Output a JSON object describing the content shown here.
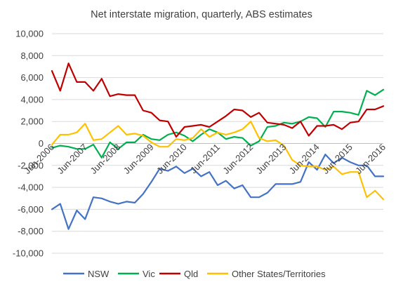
{
  "chart_data": {
    "type": "line",
    "title": "Net interstate migration, quarterly,  ABS estimates",
    "xlabel": "",
    "ylabel": "",
    "ylim": [
      -10000,
      10000
    ],
    "yticks": [
      -10000,
      -8000,
      -6000,
      -4000,
      -2000,
      0,
      2000,
      4000,
      6000,
      8000,
      10000
    ],
    "ytick_labels": [
      "-10,000",
      "-8,000",
      "-6,000",
      "-4,000",
      "-2,000",
      "0",
      "2,000",
      "4,000",
      "6,000",
      "8,000",
      "10,000"
    ],
    "xtick_labels": [
      "Jun-2006",
      "Jun-2007",
      "Jun-2008",
      "Jun-2009",
      "Jun-2010",
      "Jun-2011",
      "Jun-2012",
      "Jun-2013",
      "Jun-2014",
      "Jun-2015",
      "Jun-2016"
    ],
    "grid": "horizontal",
    "legend_position": "bottom",
    "x": [
      "Jun-2006",
      "Sep-2006",
      "Dec-2006",
      "Mar-2007",
      "Jun-2007",
      "Sep-2007",
      "Dec-2007",
      "Mar-2008",
      "Jun-2008",
      "Sep-2008",
      "Dec-2008",
      "Mar-2009",
      "Jun-2009",
      "Sep-2009",
      "Dec-2009",
      "Mar-2010",
      "Jun-2010",
      "Sep-2010",
      "Dec-2010",
      "Mar-2011",
      "Jun-2011",
      "Sep-2011",
      "Dec-2011",
      "Mar-2012",
      "Jun-2012",
      "Sep-2012",
      "Dec-2012",
      "Mar-2013",
      "Jun-2013",
      "Sep-2013",
      "Dec-2013",
      "Mar-2014",
      "Jun-2014",
      "Sep-2014",
      "Dec-2014",
      "Mar-2015",
      "Jun-2015",
      "Sep-2015",
      "Dec-2015",
      "Mar-2016",
      "Jun-2016"
    ],
    "series": [
      {
        "name": "NSW",
        "color": "#4472C4",
        "values": [
          -6000,
          -5500,
          -7800,
          -6100,
          -6900,
          -4900,
          -5000,
          -5300,
          -5500,
          -5300,
          -5400,
          -4600,
          -3500,
          -2300,
          -2500,
          -2100,
          -2700,
          -2300,
          -3000,
          -2600,
          -3800,
          -3400,
          -4100,
          -3800,
          -4900,
          -4900,
          -4500,
          -3700,
          -3700,
          -3700,
          -3500,
          -1700,
          -2400,
          -1000,
          -1800,
          -1300,
          -1700,
          -2000,
          -2000,
          -3000,
          -3000
        ]
      },
      {
        "name": "Vic",
        "color": "#00B050",
        "values": [
          -400,
          -200,
          -300,
          -500,
          -500,
          -100,
          -1300,
          100,
          -500,
          100,
          100,
          800,
          400,
          300,
          800,
          1000,
          700,
          200,
          800,
          1300,
          1000,
          400,
          600,
          500,
          -200,
          200,
          1500,
          1600,
          1900,
          1800,
          2000,
          2400,
          2300,
          1500,
          2900,
          2900,
          2800,
          2600,
          4800,
          4400,
          4900
        ]
      },
      {
        "name": "Qld",
        "color": "#C00000",
        "values": [
          6600,
          4800,
          7300,
          5600,
          5600,
          4800,
          5900,
          4300,
          4500,
          4400,
          4400,
          3000,
          2800,
          2100,
          2000,
          600,
          1500,
          1600,
          1700,
          1500,
          2000,
          2500,
          3100,
          3000,
          2400,
          2800,
          1900,
          1800,
          1700,
          1400,
          2000,
          700,
          1600,
          1600,
          1700,
          1300,
          1900,
          2000,
          3100,
          3100,
          3400
        ]
      },
      {
        "name": "Other States/Territories",
        "color": "#FFC000",
        "values": [
          -100,
          800,
          800,
          1000,
          1800,
          300,
          400,
          1000,
          1600,
          800,
          900,
          700,
          100,
          -300,
          -300,
          400,
          300,
          500,
          1300,
          600,
          1000,
          800,
          1000,
          1300,
          2000,
          500,
          200,
          300,
          -200,
          -1500,
          -2000,
          -2100,
          -2100,
          -2400,
          -2100,
          -2800,
          -2600,
          -2600,
          -4900,
          -4300,
          -5100
        ]
      }
    ]
  }
}
